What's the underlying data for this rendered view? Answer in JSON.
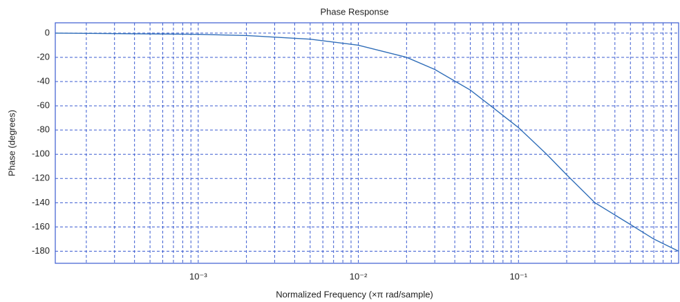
{
  "chart_data": {
    "type": "line",
    "title": "Phase Response",
    "x_label": "Normalized Frequency (×π rad/sample)",
    "y_label": "Phase (degrees)",
    "x_scale": "log",
    "grid": true,
    "xlim": [
      0.000128,
      1
    ],
    "ylim": [
      -190,
      8.5
    ],
    "xticks": [
      {
        "value": 0.001,
        "label": "10⁻³"
      },
      {
        "value": 0.01,
        "label": "10⁻²"
      },
      {
        "value": 0.1,
        "label": "10⁻¹"
      }
    ],
    "xgrid_minor": [
      0.0002,
      0.0003,
      0.0004,
      0.0005,
      0.0006,
      0.0007,
      0.0008,
      0.0009,
      0.002,
      0.003,
      0.004,
      0.005,
      0.006,
      0.007,
      0.008,
      0.009,
      0.02,
      0.03,
      0.04,
      0.05,
      0.06,
      0.07,
      0.08,
      0.09,
      0.2,
      0.3,
      0.4,
      0.5,
      0.6,
      0.7,
      0.8,
      0.9
    ],
    "yticks": [
      0,
      -20,
      -40,
      -60,
      -80,
      -100,
      -120,
      -140,
      -160,
      -180
    ],
    "x": [
      0.000128,
      0.001,
      0.002,
      0.005,
      0.01,
      0.02,
      0.03,
      0.05,
      0.07,
      0.1,
      0.15,
      0.2,
      0.3,
      0.5,
      0.7,
      1
    ],
    "series": [
      {
        "color": "#2f6db8",
        "values": [
          0,
          -1,
          -2,
          -5,
          -10,
          -20,
          -30,
          -47,
          -62,
          -78,
          -100,
          -117,
          -140,
          -158,
          -170,
          -180
        ]
      }
    ]
  }
}
